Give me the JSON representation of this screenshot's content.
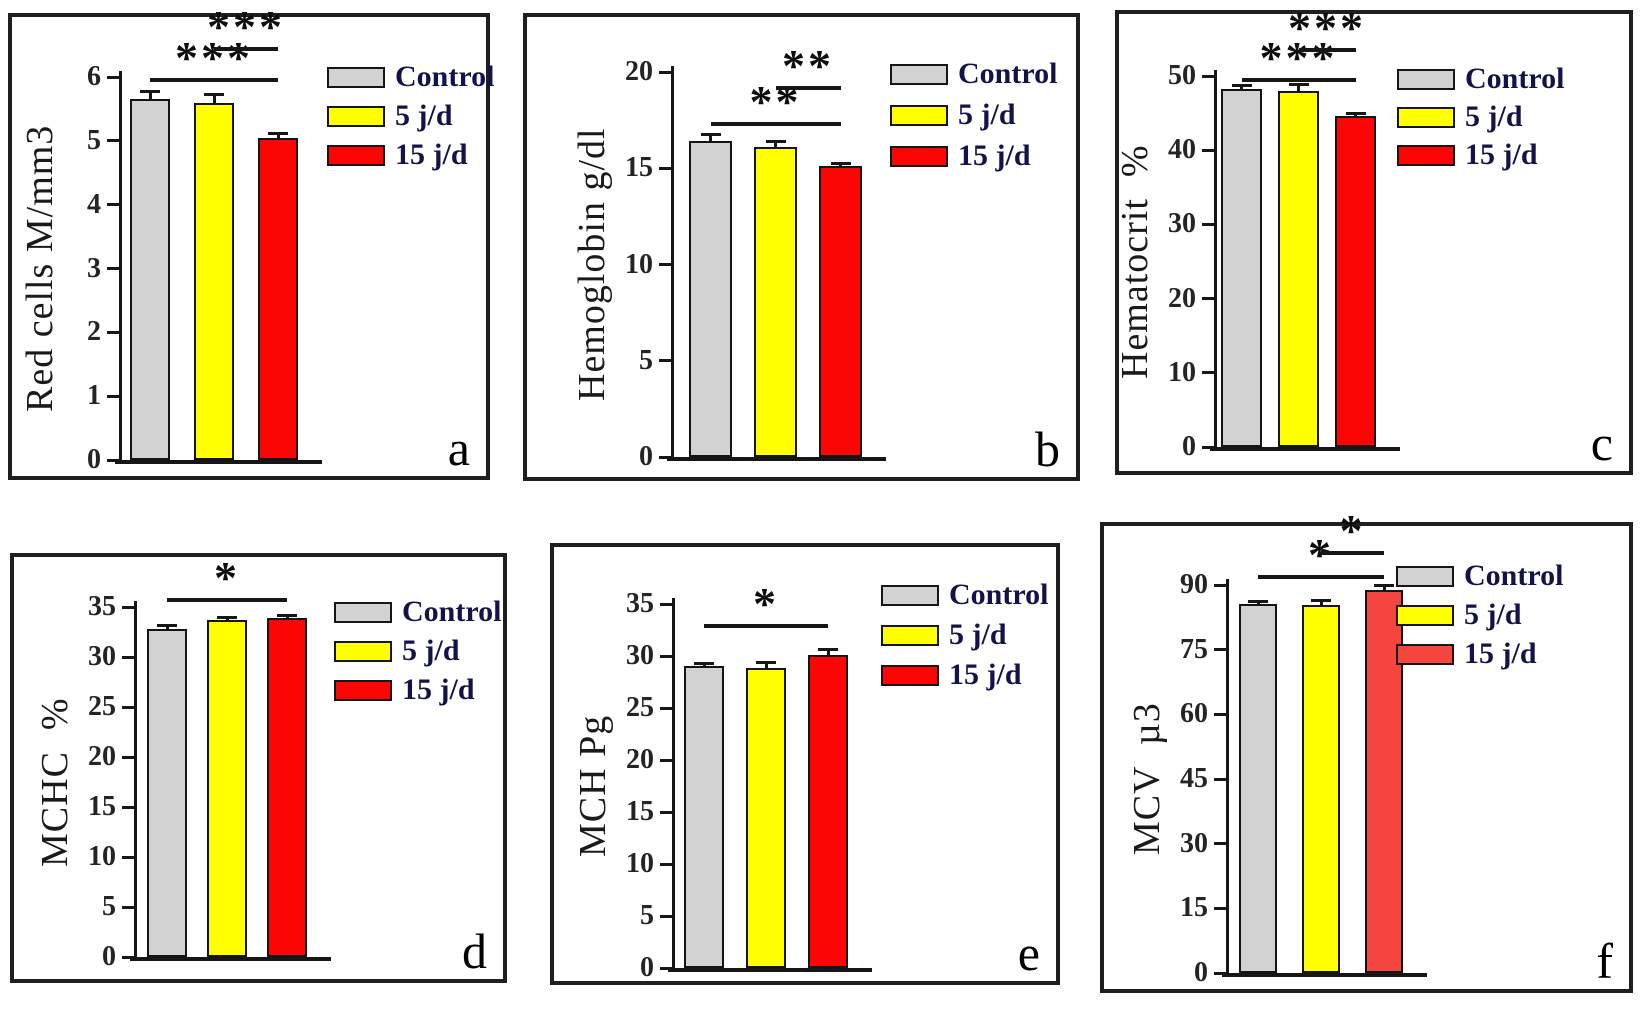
{
  "figure": {
    "description": "Six-panel bar chart figure of blood parameters for three groups",
    "groups": [
      "Control",
      "5 j/d",
      "15 j/d"
    ],
    "group_colors": {
      "Control": "#d2d2d2",
      "5 j/d": "#ffff00",
      "15 j/d": "#fb0505"
    },
    "panel_letters": [
      "a",
      "b",
      "c",
      "d",
      "e",
      "f"
    ]
  },
  "chart_data": [
    {
      "type": "bar",
      "panel_label": "a",
      "ylabel": "Red cells M/mm3",
      "categories": [
        "Control",
        "5 j/d",
        "15 j/d"
      ],
      "values": [
        5.65,
        5.6,
        5.05
      ],
      "errors": [
        0.12,
        0.12,
        0.05
      ],
      "bar_colors": [
        "#d2d2d2",
        "#ffff00",
        "#fb0505"
      ],
      "ylim": [
        0,
        6
      ],
      "yticks": [
        0,
        1,
        2,
        3,
        4,
        5,
        6
      ],
      "grid": false,
      "legend_position": "upper right",
      "legend_entries": [
        "Control",
        "5 j/d",
        "15 j/d"
      ],
      "significance": [
        {
          "between": [
            "Control",
            "15 j/d"
          ],
          "label": "***"
        },
        {
          "between": [
            "5 j/d",
            "15 j/d"
          ],
          "label": "***"
        }
      ]
    },
    {
      "type": "bar",
      "panel_label": "b",
      "ylabel": "Hemoglobin g/dl",
      "categories": [
        "Control",
        "5 j/d",
        "15 j/d"
      ],
      "values": [
        16.4,
        16.1,
        15.1
      ],
      "errors": [
        0.35,
        0.25,
        0.1
      ],
      "bar_colors": [
        "#d2d2d2",
        "#ffff00",
        "#fb0505"
      ],
      "ylim": [
        0,
        20
      ],
      "yticks": [
        0,
        5,
        10,
        15,
        20
      ],
      "grid": false,
      "legend_position": "upper right",
      "legend_entries": [
        "Control",
        "5 j/d",
        "15 j/d"
      ],
      "significance": [
        {
          "between": [
            "Control",
            "15 j/d"
          ],
          "label": "**"
        },
        {
          "between": [
            "5 j/d",
            "15 j/d"
          ],
          "label": "**"
        }
      ]
    },
    {
      "type": "bar",
      "panel_label": "c",
      "ylabel": "Hematocrit  %",
      "categories": [
        "Control",
        "5 j/d",
        "15 j/d"
      ],
      "values": [
        48.2,
        48.0,
        44.6
      ],
      "errors": [
        0.5,
        0.8,
        0.25
      ],
      "bar_colors": [
        "#d2d2d2",
        "#ffff00",
        "#fb0505"
      ],
      "ylim": [
        0,
        50
      ],
      "yticks": [
        0,
        10,
        20,
        30,
        40,
        50
      ],
      "grid": false,
      "legend_position": "upper right",
      "legend_entries": [
        "Control",
        "5 j/d",
        "15 j/d"
      ],
      "significance": [
        {
          "between": [
            "Control",
            "15 j/d"
          ],
          "label": "***"
        },
        {
          "between": [
            "5 j/d",
            "15 j/d"
          ],
          "label": "***"
        }
      ]
    },
    {
      "type": "bar",
      "panel_label": "d",
      "ylabel": "MCHC  %",
      "categories": [
        "Control",
        "5 j/d",
        "15 j/d"
      ],
      "values": [
        32.8,
        33.7,
        33.9
      ],
      "errors": [
        0.35,
        0.2,
        0.12
      ],
      "bar_colors": [
        "#d2d2d2",
        "#ffff00",
        "#fb0505"
      ],
      "ylim": [
        0,
        35
      ],
      "yticks": [
        0,
        5,
        10,
        15,
        20,
        25,
        30,
        35
      ],
      "grid": false,
      "legend_position": "upper right",
      "legend_entries": [
        "Control",
        "5 j/d",
        "15 j/d"
      ],
      "significance": [
        {
          "between": [
            "Control",
            "15 j/d"
          ],
          "label": "*"
        }
      ]
    },
    {
      "type": "bar",
      "panel_label": "e",
      "ylabel": "MCH Pg",
      "categories": [
        "Control",
        "5 j/d",
        "15 j/d"
      ],
      "values": [
        29.0,
        28.8,
        30.1
      ],
      "errors": [
        0.15,
        0.55,
        0.45
      ],
      "bar_colors": [
        "#d2d2d2",
        "#ffff00",
        "#fb0505"
      ],
      "ylim": [
        0,
        35
      ],
      "yticks": [
        0,
        5,
        10,
        15,
        20,
        25,
        30,
        35
      ],
      "grid": false,
      "legend_position": "upper right",
      "legend_entries": [
        "Control",
        "5 j/d",
        "15 j/d"
      ],
      "significance": [
        {
          "between": [
            "Control",
            "15 j/d"
          ],
          "label": "*"
        }
      ]
    },
    {
      "type": "bar",
      "panel_label": "f",
      "ylabel": "MCV  µ3",
      "categories": [
        "Control",
        "5 j/d",
        "15 j/d"
      ],
      "values": [
        85.5,
        85.4,
        88.8
      ],
      "errors": [
        0.4,
        0.9,
        1.0
      ],
      "bar_colors": [
        "#d2d2d2",
        "#ffff00",
        "#f4463f"
      ],
      "ylim": [
        0,
        90
      ],
      "yticks": [
        0,
        15,
        30,
        45,
        60,
        75,
        90
      ],
      "grid": false,
      "legend_position": "upper right",
      "legend_entries": [
        "Control",
        "5 j/d",
        "15 j/d"
      ],
      "significance": [
        {
          "between": [
            "Control",
            "15 j/d"
          ],
          "label": "*"
        },
        {
          "between": [
            "5 j/d",
            "15 j/d"
          ],
          "label": "*"
        }
      ]
    }
  ],
  "colors": {
    "control_fill": "#d2d2d2",
    "five_jd_fill": "#ffff00",
    "fifteen_jd_fill": "#fb0505",
    "fifteen_jd_fill_panel_f": "#f4463f",
    "axis_and_lines": "#161616",
    "legend_text": "#13134a",
    "tick_text": "#242424",
    "panel_border": "#1f1f1f"
  }
}
